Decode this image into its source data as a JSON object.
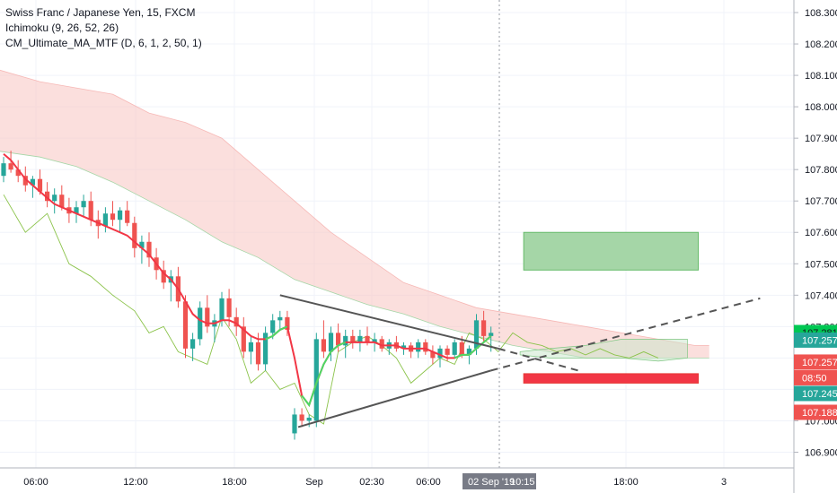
{
  "legend": {
    "symbol": "Swiss Franc / Japanese Yen, 15, FXCM",
    "ichimoku": "Ichimoku (9, 26, 52, 26)",
    "ma": "CM_Ultimate_MA_MTF (D, 6, 1, 2, 50, 1)"
  },
  "colors": {
    "up": "#26a69a",
    "down": "#ef5350",
    "ma_down": "#f23645",
    "ma_up": "#4cd964",
    "cloud_red": "#f9c9c7",
    "cloud_green": "#c8e6c9",
    "lagging": "#8bc34a",
    "trend": "#555555",
    "tp_box": "#a5d6a7",
    "sl_box": "#f23645"
  },
  "chart_data": {
    "type": "candlestick",
    "yaxis": {
      "min": 106.85,
      "max": 108.34,
      "ticks": [
        "106.900",
        "107.000",
        "107.100",
        "107.200",
        "107.300",
        "107.400",
        "107.500",
        "107.600",
        "107.700",
        "107.800",
        "107.900",
        "108.000",
        "108.100",
        "108.200",
        "108.300"
      ],
      "tick_values": [
        106.9,
        107.0,
        107.1,
        107.2,
        107.3,
        107.4,
        107.5,
        107.6,
        107.7,
        107.8,
        107.9,
        108.0,
        108.1,
        108.2,
        108.3
      ]
    },
    "xaxis": {
      "ticks": [
        "06:00",
        "12:00",
        "18:00",
        "Sep",
        "02:30",
        "06:00",
        "10:15",
        "18:00",
        "3"
      ],
      "crosshair_label": "02 Sep '19"
    },
    "candles": [
      [
        107.78,
        107.84,
        107.76,
        107.82
      ],
      [
        107.82,
        107.86,
        107.79,
        107.8
      ],
      [
        107.8,
        107.83,
        107.76,
        107.78
      ],
      [
        107.78,
        107.81,
        107.73,
        107.75
      ],
      [
        107.75,
        107.78,
        107.71,
        107.77
      ],
      [
        107.77,
        107.8,
        107.72,
        107.73
      ],
      [
        107.73,
        107.76,
        107.68,
        107.7
      ],
      [
        107.7,
        107.74,
        107.66,
        107.72
      ],
      [
        107.72,
        107.75,
        107.67,
        107.68
      ],
      [
        107.68,
        107.71,
        107.63,
        107.66
      ],
      [
        107.66,
        107.7,
        107.63,
        107.68
      ],
      [
        107.68,
        107.72,
        107.65,
        107.7
      ],
      [
        107.7,
        107.73,
        107.62,
        107.64
      ],
      [
        107.64,
        107.67,
        107.58,
        107.62
      ],
      [
        107.62,
        107.68,
        107.6,
        107.66
      ],
      [
        107.66,
        107.7,
        107.62,
        107.64
      ],
      [
        107.64,
        107.68,
        107.6,
        107.67
      ],
      [
        107.67,
        107.7,
        107.62,
        107.63
      ],
      [
        107.63,
        107.65,
        107.52,
        107.55
      ],
      [
        107.55,
        107.59,
        107.5,
        107.57
      ],
      [
        107.57,
        107.6,
        107.49,
        107.52
      ],
      [
        107.52,
        107.55,
        107.45,
        107.48
      ],
      [
        107.48,
        107.51,
        107.42,
        107.44
      ],
      [
        107.44,
        107.48,
        107.38,
        107.46
      ],
      [
        107.46,
        107.49,
        107.36,
        107.38
      ],
      [
        107.38,
        107.4,
        107.2,
        107.23
      ],
      [
        107.23,
        107.28,
        107.19,
        107.26
      ],
      [
        107.26,
        107.38,
        107.24,
        107.36
      ],
      [
        107.36,
        107.4,
        107.28,
        107.3
      ],
      [
        107.3,
        107.34,
        107.25,
        107.32
      ],
      [
        107.32,
        107.41,
        107.3,
        107.39
      ],
      [
        107.39,
        107.42,
        107.3,
        107.33
      ],
      [
        107.33,
        107.36,
        107.27,
        107.3
      ],
      [
        107.3,
        107.33,
        107.2,
        107.22
      ],
      [
        107.22,
        107.27,
        107.18,
        107.25
      ],
      [
        107.25,
        107.28,
        107.16,
        107.18
      ],
      [
        107.18,
        107.3,
        107.16,
        107.28
      ],
      [
        107.28,
        107.34,
        107.26,
        107.32
      ],
      [
        107.32,
        107.35,
        107.29,
        107.33
      ],
      [
        107.33,
        107.35,
        107.27,
        107.29
      ],
      [
        106.96,
        107.04,
        106.94,
        107.02
      ],
      [
        107.02,
        107.04,
        106.98,
        107.0
      ],
      [
        107.0,
        107.02,
        106.98,
        107.01
      ],
      [
        107.0,
        107.28,
        106.98,
        107.26
      ],
      [
        107.26,
        107.32,
        107.2,
        107.22
      ],
      [
        107.22,
        107.3,
        107.19,
        107.28
      ],
      [
        107.28,
        107.31,
        107.22,
        107.24
      ],
      [
        107.24,
        107.29,
        107.2,
        107.27
      ],
      [
        107.27,
        107.29,
        107.23,
        107.25
      ],
      [
        107.25,
        107.29,
        107.22,
        107.27
      ],
      [
        107.27,
        107.3,
        107.24,
        107.25
      ],
      [
        107.25,
        107.28,
        107.22,
        107.26
      ],
      [
        107.26,
        107.27,
        107.22,
        107.23
      ],
      [
        107.23,
        107.26,
        107.21,
        107.25
      ],
      [
        107.25,
        107.27,
        107.22,
        107.23
      ],
      [
        107.23,
        107.25,
        107.21,
        107.24
      ],
      [
        107.24,
        107.25,
        107.2,
        107.22
      ],
      [
        107.22,
        107.26,
        107.2,
        107.25
      ],
      [
        107.25,
        107.26,
        107.21,
        107.22
      ],
      [
        107.22,
        107.24,
        107.18,
        107.2
      ],
      [
        107.2,
        107.24,
        107.17,
        107.23
      ],
      [
        107.23,
        107.24,
        107.19,
        107.21
      ],
      [
        107.21,
        107.26,
        107.2,
        107.25
      ],
      [
        107.25,
        107.27,
        107.2,
        107.21
      ],
      [
        107.21,
        107.24,
        107.18,
        107.23
      ],
      [
        107.23,
        107.34,
        107.21,
        107.32
      ],
      [
        107.32,
        107.35,
        107.25,
        107.27
      ],
      [
        107.27,
        107.3,
        107.22,
        107.28
      ]
    ],
    "ma_line": [
      107.85,
      107.83,
      107.8,
      107.77,
      107.75,
      107.73,
      107.71,
      107.69,
      107.68,
      107.67,
      107.66,
      107.65,
      107.64,
      107.63,
      107.62,
      107.61,
      107.6,
      107.59,
      107.57,
      107.55,
      107.53,
      107.5,
      107.47,
      107.45,
      107.42,
      107.38,
      107.34,
      107.32,
      107.31,
      107.31,
      107.32,
      107.32,
      107.31,
      107.29,
      107.27,
      107.26,
      107.26,
      107.27,
      107.29,
      107.3,
      107.2,
      107.08,
      107.05,
      107.12,
      107.18,
      107.22,
      107.24,
      107.25,
      107.25,
      107.25,
      107.25,
      107.25,
      107.24,
      107.24,
      107.24,
      107.23,
      107.23,
      107.23,
      107.23,
      107.22,
      107.21,
      107.2,
      107.2,
      107.21,
      107.21,
      107.23,
      107.25,
      107.27
    ],
    "ma_up_segments": [
      [
        36,
        39
      ],
      [
        41,
        47
      ],
      [
        62,
        67
      ]
    ],
    "lagging_line": [
      [
        0,
        107.72
      ],
      [
        3,
        107.6
      ],
      [
        6,
        107.66
      ],
      [
        9,
        107.5
      ],
      [
        12,
        107.46
      ],
      [
        15,
        107.4
      ],
      [
        18,
        107.35
      ],
      [
        20,
        107.28
      ],
      [
        22,
        107.3
      ],
      [
        24,
        107.22
      ],
      [
        26,
        107.2
      ],
      [
        28,
        107.18
      ],
      [
        30,
        107.33
      ],
      [
        32,
        107.26
      ],
      [
        34,
        107.12
      ],
      [
        36,
        107.16
      ],
      [
        38,
        107.1
      ],
      [
        40,
        107.12
      ],
      [
        42,
        107.02
      ],
      [
        44,
        106.99
      ],
      [
        46,
        107.22
      ],
      [
        48,
        107.25
      ],
      [
        50,
        107.27
      ],
      [
        52,
        107.24
      ],
      [
        54,
        107.2
      ],
      [
        56,
        107.12
      ],
      [
        58,
        107.16
      ],
      [
        60,
        107.2
      ],
      [
        62,
        107.18
      ],
      [
        64,
        107.28
      ],
      [
        66,
        107.26
      ],
      [
        68,
        107.22
      ],
      [
        70,
        107.28
      ],
      [
        72,
        107.25
      ],
      [
        74,
        107.24
      ],
      [
        76,
        107.22
      ],
      [
        78,
        107.23
      ],
      [
        80,
        107.21
      ],
      [
        82,
        107.23
      ],
      [
        84,
        107.21
      ],
      [
        86,
        107.2
      ],
      [
        88,
        107.22
      ],
      [
        90,
        107.2
      ]
    ],
    "cloud_a": [
      [
        -1,
        108.12
      ],
      [
        5,
        108.08
      ],
      [
        10,
        108.06
      ],
      [
        15,
        108.04
      ],
      [
        20,
        107.98
      ],
      [
        25,
        107.95
      ],
      [
        30,
        107.9
      ],
      [
        35,
        107.8
      ],
      [
        40,
        107.7
      ],
      [
        45,
        107.6
      ],
      [
        50,
        107.52
      ],
      [
        55,
        107.44
      ],
      [
        60,
        107.4
      ],
      [
        65,
        107.36
      ],
      [
        70,
        107.34
      ],
      [
        75,
        107.32
      ],
      [
        80,
        107.3
      ],
      [
        85,
        107.28
      ],
      [
        90,
        107.26
      ],
      [
        95,
        107.24
      ],
      [
        97,
        107.24
      ]
    ],
    "cloud_b": [
      [
        -1,
        107.86
      ],
      [
        5,
        107.84
      ],
      [
        10,
        107.81
      ],
      [
        15,
        107.76
      ],
      [
        20,
        107.7
      ],
      [
        25,
        107.64
      ],
      [
        30,
        107.57
      ],
      [
        35,
        107.52
      ],
      [
        40,
        107.45
      ],
      [
        45,
        107.41
      ],
      [
        50,
        107.37
      ],
      [
        55,
        107.34
      ],
      [
        60,
        107.3
      ],
      [
        65,
        107.27
      ],
      [
        70,
        107.24
      ],
      [
        75,
        107.22
      ],
      [
        80,
        107.2
      ],
      [
        85,
        107.2
      ],
      [
        90,
        107.2
      ],
      [
        95,
        107.2
      ],
      [
        97,
        107.2
      ]
    ],
    "cloud_future": [
      [
        71,
        107.21,
        107.22
      ],
      [
        75,
        107.2,
        107.23
      ],
      [
        80,
        107.2,
        107.24
      ],
      [
        85,
        107.2,
        107.26
      ],
      [
        90,
        107.19,
        107.26
      ],
      [
        94,
        107.2,
        107.26
      ]
    ],
    "trendlines": [
      {
        "from": [
          38,
          107.4
        ],
        "to": [
          68,
          107.23
        ],
        "dashed": false
      },
      {
        "from": [
          40.5,
          106.98
        ],
        "to": [
          67,
          107.16
        ],
        "dashed": false
      },
      {
        "from": [
          67,
          107.16
        ],
        "to": [
          104,
          107.39
        ],
        "dashed": true
      },
      {
        "from": [
          68,
          107.23
        ],
        "to": [
          79,
          107.16
        ],
        "dashed": true
      }
    ],
    "boxes": [
      {
        "kind": "take-profit",
        "from": [
          71.5,
          107.6
        ],
        "to": [
          95.5,
          107.48
        ]
      },
      {
        "kind": "stop-loss",
        "from": [
          71.5,
          107.15
        ],
        "to": [
          95.5,
          107.12
        ]
      }
    ],
    "price_badges": [
      {
        "label": "107.281",
        "value": 107.281,
        "color": "#00c853",
        "text_color": "#131722"
      },
      {
        "label": "107.257",
        "value": 107.257,
        "color": "#26a69a",
        "text_color": "#ffffff"
      },
      {
        "label": "107.257",
        "value": 107.187,
        "color": "#ef5350",
        "text_color": "#ffffff"
      },
      {
        "label": "08:50",
        "value": 107.137,
        "color": "#ef5350",
        "text_color": "#ffffff"
      },
      {
        "label": "107.245",
        "value": 107.087,
        "color": "#26a69a",
        "text_color": "#ffffff"
      },
      {
        "label": "107.188",
        "value": 107.027,
        "color": "#ef5350",
        "text_color": "#ffffff"
      }
    ]
  }
}
